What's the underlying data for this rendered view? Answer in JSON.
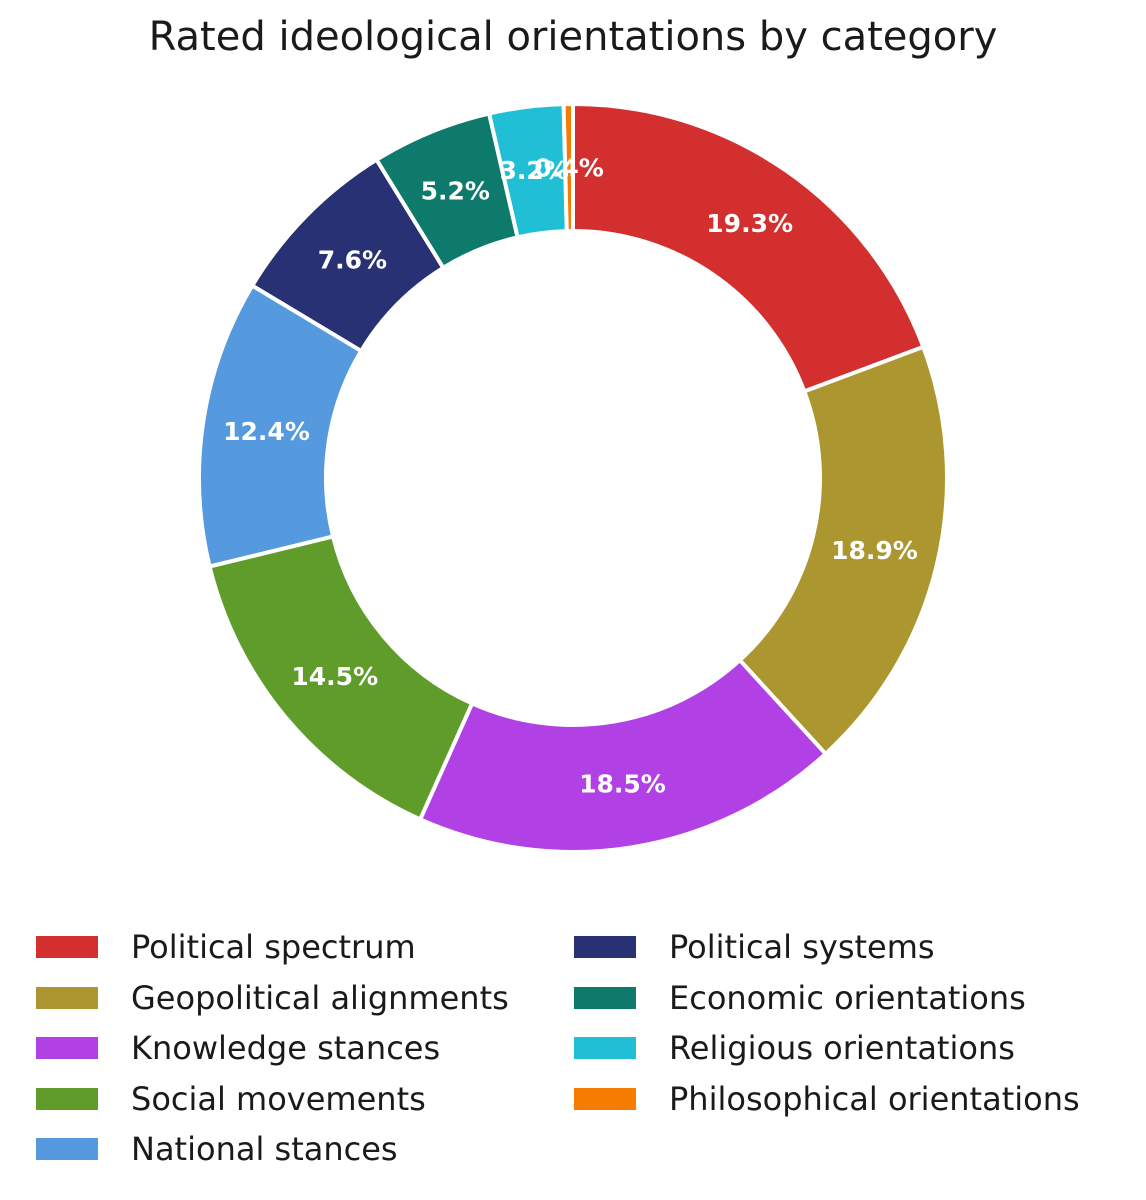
{
  "chart_data": {
    "type": "pie",
    "title": "Rated ideological orientations by category",
    "categories": [
      "Political spectrum",
      "Geopolitical alignments",
      "Knowledge stances",
      "Social movements",
      "National stances",
      "Political systems",
      "Economic orientations",
      "Religious orientations",
      "Philosophical orientations"
    ],
    "values": [
      19.3,
      18.9,
      18.5,
      14.5,
      12.4,
      7.6,
      5.2,
      3.2,
      0.4
    ],
    "labels": [
      "19.3%",
      "18.9%",
      "18.5%",
      "14.5%",
      "12.4%",
      "7.6%",
      "5.2%",
      "3.2%",
      "0.4%"
    ],
    "colors": [
      "#d32f2f",
      "#ab9630",
      "#b141e4",
      "#5f9c2a",
      "#5599de",
      "#283174",
      "#0d7a6c",
      "#21bfd6",
      "#f57c00"
    ],
    "donut": true,
    "start": "top, clockwise",
    "legend_position": "bottom, two columns"
  }
}
